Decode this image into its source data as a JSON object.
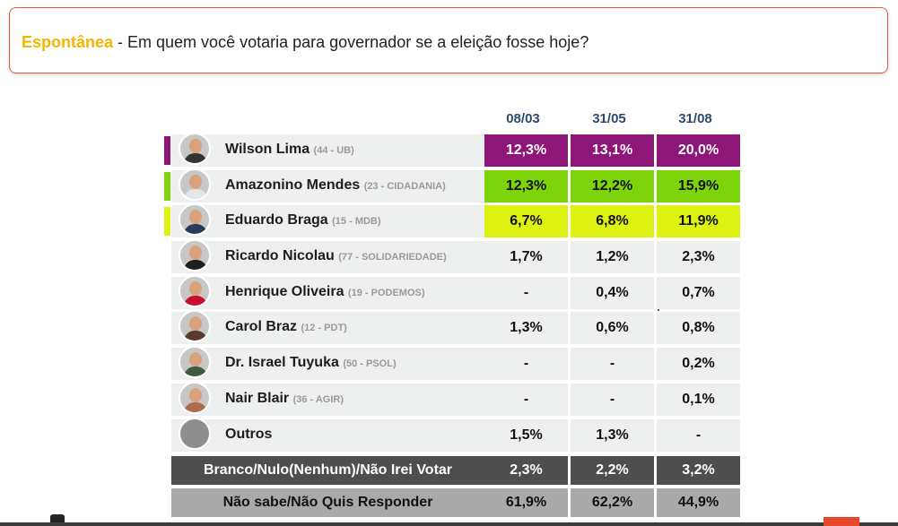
{
  "question": {
    "label": "Espontânea",
    "text": " - Em quem você votaria para governador se a eleição fosse hoje?"
  },
  "columns": [
    "08/03",
    "31/05",
    "31/08"
  ],
  "candidates": [
    {
      "name": "Wilson Lima",
      "party": "(44 - UB)",
      "values": [
        "12,3%",
        "13,1%",
        "20,0%"
      ],
      "accent": "#8d1678"
    },
    {
      "name": "Amazonino Mendes",
      "party": "(23 - CIDADANIA)",
      "values": [
        "12,3%",
        "12,2%",
        "15,9%"
      ],
      "accent": "#7dd40a"
    },
    {
      "name": "Eduardo Braga",
      "party": "(15 - MDB)",
      "values": [
        "6,7%",
        "6,8%",
        "11,9%"
      ],
      "accent": "#dcf210"
    },
    {
      "name": "Ricardo Nicolau",
      "party": "(77 - SOLIDARIEDADE)",
      "values": [
        "1,7%",
        "1,2%",
        "2,3%"
      ]
    },
    {
      "name": "Henrique Oliveira",
      "party": "(19 - PODEMOS)",
      "values": [
        "-",
        "0,4%",
        "0,7%"
      ]
    },
    {
      "name": "Carol Braz",
      "party": "(12 - PDT)",
      "values": [
        "1,3%",
        "0,6%",
        "0,8%"
      ]
    },
    {
      "name": "Dr. Israel Tuyuka",
      "party": "(50 - PSOL)",
      "values": [
        "-",
        "-",
        "0,2%"
      ]
    },
    {
      "name": "Nair Blair",
      "party": "(36 - AGIR)",
      "values": [
        "-",
        "-",
        "0,1%"
      ]
    },
    {
      "name": "Outros",
      "party": "",
      "values": [
        "1,5%",
        "1,3%",
        "-"
      ]
    }
  ],
  "summary": [
    {
      "label": "Branco/Nulo(Nenhum)/Não Irei Votar",
      "values": [
        "2,3%",
        "2,2%",
        "3,2%"
      ]
    },
    {
      "label": "Não sabe/Não Quis Responder",
      "values": [
        "61,9%",
        "62,2%",
        "44,9%"
      ]
    }
  ]
}
